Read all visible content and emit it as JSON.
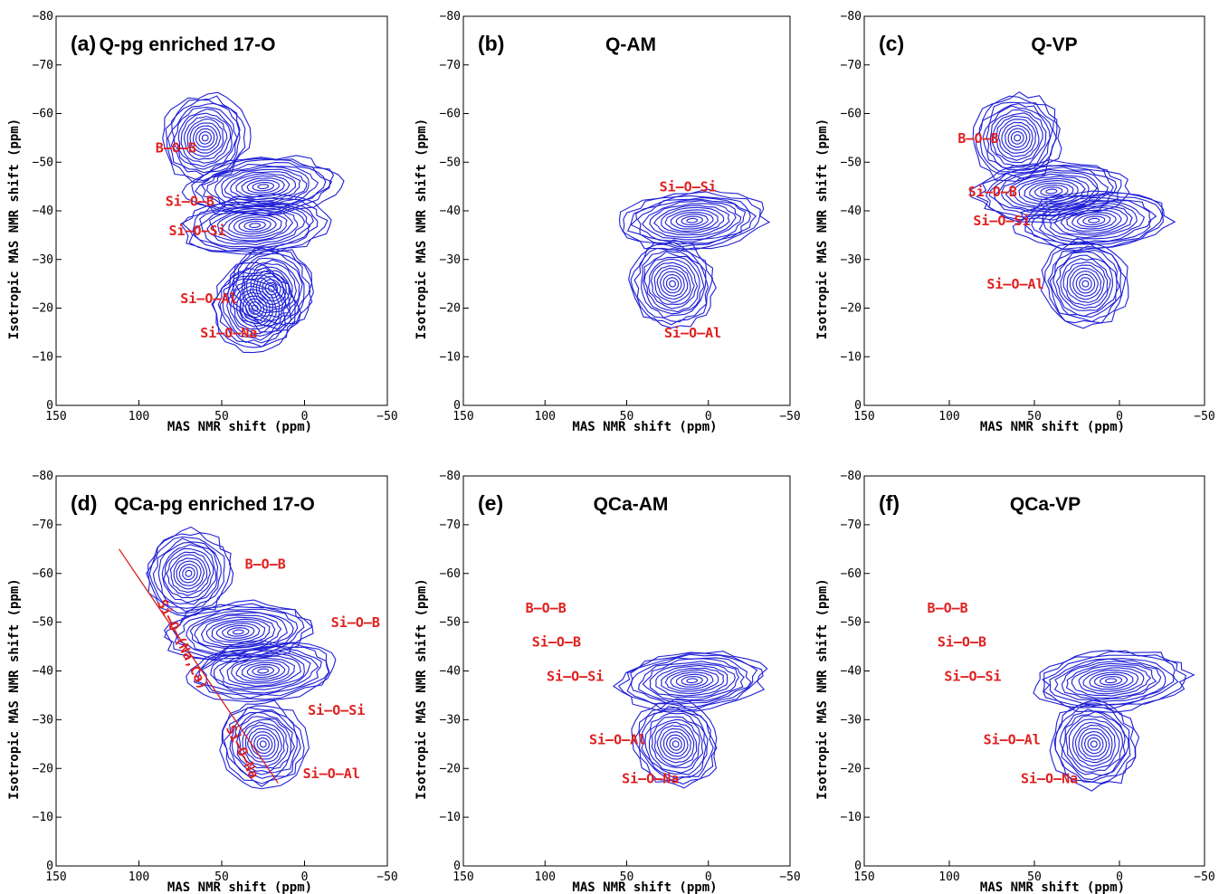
{
  "figure": {
    "x_axis_label": "MAS NMR shift (ppm)",
    "y_axis_label": "Isotropic MAS NMR shift (ppm)",
    "x_ticks": [
      150,
      100,
      50,
      0,
      -50
    ],
    "y_ticks": [
      -80,
      -70,
      -60,
      -50,
      -40,
      -30,
      -20,
      -10,
      0
    ],
    "contour_color": "#1f1fd6",
    "annotation_color": "#e02020"
  },
  "chart_data": [
    {
      "type": "heatmap",
      "panel": "(a)",
      "title": "Q-pg enriched 17-O",
      "xlabel": "MAS NMR shift (ppm)",
      "ylabel": "Isotropic MAS NMR shift (ppm)",
      "xlim": [
        150,
        -50
      ],
      "ylim": [
        0,
        -80
      ],
      "peaks": [
        {
          "label": "B-O-B",
          "x": 60,
          "y": -55
        },
        {
          "label": "Si-O-B",
          "x": 25,
          "y": -45
        },
        {
          "label": "Si-O-Si",
          "x": 30,
          "y": -37
        },
        {
          "label": "Si-O-Al",
          "x": 20,
          "y": -24
        },
        {
          "label": "Si-O-Na",
          "x": 30,
          "y": -20
        }
      ],
      "annotations": [
        {
          "text": "B-O-B",
          "x": 90,
          "y": -52
        },
        {
          "text": "Si-O-B",
          "x": 84,
          "y": -41
        },
        {
          "text": "Si-O-Si",
          "x": 82,
          "y": -35
        },
        {
          "text": "Si-O-Al",
          "x": 75,
          "y": -21
        },
        {
          "text": "Si-O-Na",
          "x": 63,
          "y": -14
        }
      ]
    },
    {
      "type": "heatmap",
      "panel": "(b)",
      "title": "Q-AM",
      "xlabel": "MAS NMR shift (ppm)",
      "ylabel": "Isotropic MAS NMR shift (ppm)",
      "xlim": [
        150,
        -50
      ],
      "ylim": [
        0,
        -80
      ],
      "peaks": [
        {
          "label": "Si-O-Si",
          "x": 10,
          "y": -38
        },
        {
          "label": "Si-O-Al",
          "x": 22,
          "y": -25
        }
      ],
      "annotations": [
        {
          "text": "Si-O-Si",
          "x": 30,
          "y": -44
        },
        {
          "text": "Si-O-Al",
          "x": 27,
          "y": -14
        }
      ]
    },
    {
      "type": "heatmap",
      "panel": "(c)",
      "title": "Q-VP",
      "xlabel": "MAS NMR shift (ppm)",
      "ylabel": "Isotropic MAS NMR shift (ppm)",
      "xlim": [
        150,
        -50
      ],
      "ylim": [
        0,
        -80
      ],
      "peaks": [
        {
          "label": "B-O-B",
          "x": 60,
          "y": -55
        },
        {
          "label": "Si-O-B",
          "x": 40,
          "y": -44
        },
        {
          "label": "Si-O-Si",
          "x": 15,
          "y": -38
        },
        {
          "label": "Si-O-Al",
          "x": 20,
          "y": -25
        }
      ],
      "annotations": [
        {
          "text": "B-O-B",
          "x": 95,
          "y": -54
        },
        {
          "text": "Si-O-B",
          "x": 89,
          "y": -43
        },
        {
          "text": "Si-O-Si",
          "x": 86,
          "y": -37
        },
        {
          "text": "Si-O-Al",
          "x": 78,
          "y": -24
        }
      ]
    },
    {
      "type": "heatmap",
      "panel": "(d)",
      "title": "QCa-pg enriched 17-O",
      "xlabel": "MAS NMR shift (ppm)",
      "ylabel": "Isotropic MAS NMR shift (ppm)",
      "xlim": [
        150,
        -50
      ],
      "ylim": [
        0,
        -80
      ],
      "peaks": [
        {
          "label": "B-O-B",
          "x": 70,
          "y": -60
        },
        {
          "label": "Si-O-B",
          "x": 40,
          "y": -48
        },
        {
          "label": "Si-O-Si",
          "x": 25,
          "y": -40
        },
        {
          "label": "Si-O-Al",
          "x": 25,
          "y": -25
        }
      ],
      "guide_line": {
        "from": {
          "x": 112,
          "y": -65
        },
        "to": {
          "x": 16,
          "y": -17
        }
      },
      "annotations": [
        {
          "text": "B-O-B",
          "x": 36,
          "y": -61
        },
        {
          "text": "Si-O-B",
          "x": -16,
          "y": -49
        },
        {
          "text": "Si-O-Si",
          "x": -2,
          "y": -31
        },
        {
          "text": "Si-O-Al",
          "x": 1,
          "y": -18
        },
        {
          "text": "Si-O-(Na,Ca)",
          "x": 76,
          "y": -45,
          "angle": 64
        },
        {
          "text": "Si-O-Na",
          "x": 40,
          "y": -23,
          "angle": 64
        }
      ]
    },
    {
      "type": "heatmap",
      "panel": "(e)",
      "title": "QCa-AM",
      "xlabel": "MAS NMR shift (ppm)",
      "ylabel": "Isotropic MAS NMR shift (ppm)",
      "xlim": [
        150,
        -50
      ],
      "ylim": [
        0,
        -80
      ],
      "peaks": [
        {
          "label": "Si-O-Si",
          "x": 10,
          "y": -38
        },
        {
          "label": "Si-O-Al",
          "x": 20,
          "y": -25
        }
      ],
      "annotations": [
        {
          "text": "B-O-B",
          "x": 112,
          "y": -52
        },
        {
          "text": "Si-O-B",
          "x": 108,
          "y": -45
        },
        {
          "text": "Si-O-Si",
          "x": 99,
          "y": -38
        },
        {
          "text": "Si-O-Al",
          "x": 73,
          "y": -25
        },
        {
          "text": "Si-O-Na",
          "x": 53,
          "y": -17
        }
      ]
    },
    {
      "type": "heatmap",
      "panel": "(f)",
      "title": "QCa-VP",
      "xlabel": "MAS NMR shift (ppm)",
      "ylabel": "Isotropic MAS NMR shift (ppm)",
      "xlim": [
        150,
        -50
      ],
      "ylim": [
        0,
        -80
      ],
      "peaks": [
        {
          "label": "Si-O-Si",
          "x": 5,
          "y": -38
        },
        {
          "label": "Si-O-Al",
          "x": 15,
          "y": -25
        }
      ],
      "annotations": [
        {
          "text": "B-O-B",
          "x": 113,
          "y": -52
        },
        {
          "text": "Si-O-B",
          "x": 107,
          "y": -45
        },
        {
          "text": "Si-O-Si",
          "x": 103,
          "y": -38
        },
        {
          "text": "Si-O-Al",
          "x": 80,
          "y": -25
        },
        {
          "text": "Si-O-Na",
          "x": 58,
          "y": -17
        }
      ]
    }
  ]
}
